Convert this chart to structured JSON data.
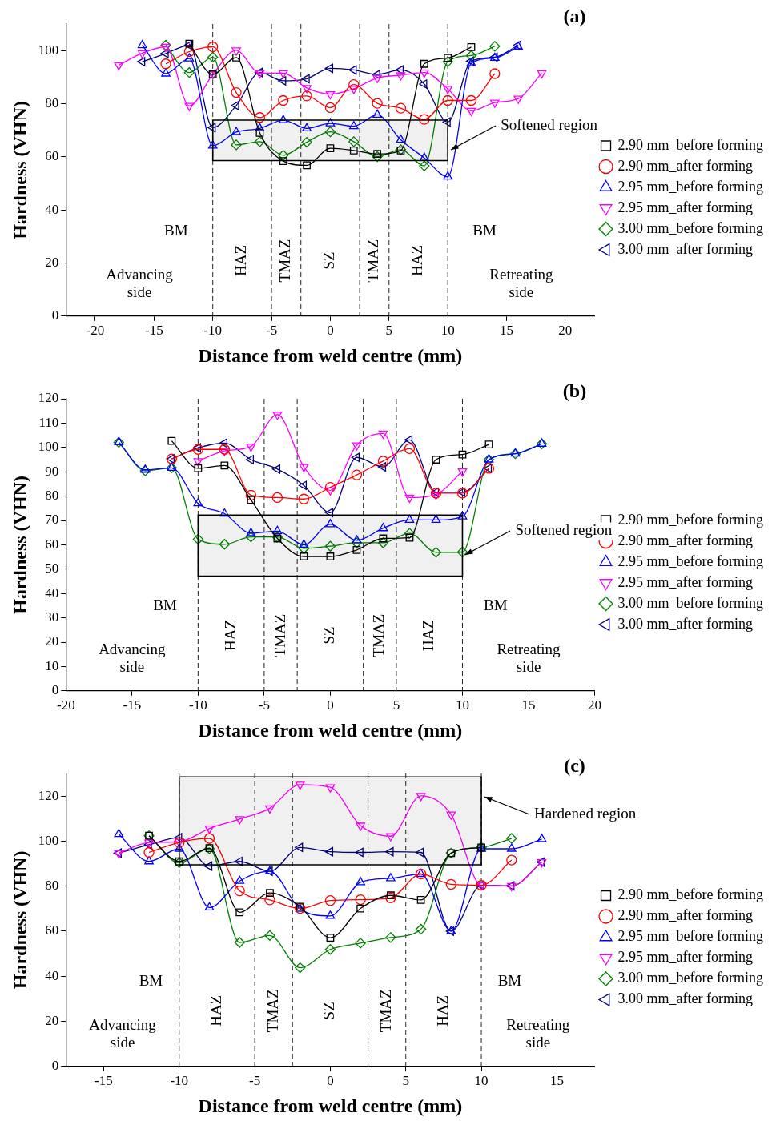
{
  "chart_data": [
    {
      "type": "line",
      "title": "(a)",
      "xlabel": "Distance from weld centre (mm)",
      "ylabel": "Hardness (VHN)",
      "xlim": [
        -22.5,
        22.5
      ],
      "xticks": [
        -20,
        -15,
        -10,
        -5,
        0,
        5,
        10,
        15,
        20
      ],
      "ylim": [
        0,
        110
      ],
      "yticks": [
        0,
        20,
        40,
        60,
        80,
        100
      ],
      "grid": false,
      "legend": "right",
      "series": [
        {
          "name": "2.90 mm_before forming",
          "color": "#000000",
          "marker": "square",
          "x": [
            -12,
            -10,
            -8,
            -6,
            -4,
            -2,
            0,
            2,
            4,
            6,
            8,
            10,
            12
          ],
          "values": [
            102.6,
            91,
            97.4,
            69,
            58.4,
            56.8,
            63.2,
            62.4,
            61.1,
            62.4,
            95,
            97.2,
            101.3
          ]
        },
        {
          "name": "2.90 mm_after forming",
          "color": "#ff0000",
          "marker": "circle",
          "x": [
            -14,
            -12,
            -10,
            -8,
            -6,
            -4,
            -2,
            0,
            2,
            4,
            6,
            8,
            10,
            12,
            14
          ],
          "values": [
            95,
            99.6,
            101.4,
            84.2,
            74.8,
            81.2,
            82.9,
            78.5,
            87.2,
            80.1,
            78.3,
            74.1,
            81.2,
            81.2,
            91.3
          ]
        },
        {
          "name": "2.95 mm_before forming",
          "color": "#0000ff",
          "marker": "triangle",
          "x": [
            -16,
            -14,
            -12,
            -10,
            -8,
            -6,
            -4,
            -2,
            0,
            2,
            4,
            6,
            8,
            10,
            12,
            14,
            16
          ],
          "values": [
            102,
            91.3,
            97,
            64.2,
            69.3,
            70.7,
            73.8,
            70.7,
            72.6,
            71.5,
            75.8,
            66.4,
            59.6,
            52.5,
            95.2,
            97.2,
            101.4
          ]
        },
        {
          "name": "2.95 mm_after forming",
          "color": "#ff00ff",
          "marker": "triangle-down",
          "x": [
            -18,
            -16,
            -14,
            -12,
            -10,
            -8,
            -6,
            -4,
            -2,
            0,
            2,
            4,
            6,
            8,
            10,
            12,
            14,
            16,
            18
          ],
          "values": [
            94.5,
            99,
            101.4,
            79.2,
            91,
            100.1,
            91.5,
            91.5,
            85.9,
            83.6,
            85.6,
            89.7,
            90.7,
            91.7,
            85.6,
            77.3,
            80.4,
            81.9,
            91.5
          ]
        },
        {
          "name": "3.00 mm_before forming",
          "color": "#008000",
          "marker": "diamond",
          "x": [
            -14,
            -12,
            -10,
            -8,
            -6,
            -4,
            -2,
            0,
            2,
            4,
            6,
            8,
            10,
            12,
            14
          ],
          "values": [
            102,
            91.7,
            97.5,
            64.5,
            65.7,
            60.6,
            65.5,
            69.4,
            65.7,
            60.1,
            62.7,
            56.6,
            95.8,
            98.1,
            101.6
          ]
        },
        {
          "name": "3.00 mm_after forming",
          "color": "#000080",
          "marker": "triangle-left",
          "x": [
            -16,
            -14,
            -12,
            -10,
            -8,
            -6,
            -4,
            -2,
            0,
            2,
            4,
            6,
            8,
            10,
            12,
            14,
            16
          ],
          "values": [
            95.8,
            98.9,
            102,
            71,
            79.3,
            91.7,
            88.6,
            89.4,
            93.3,
            92.7,
            91,
            92.7,
            87.4,
            73.1,
            96,
            97.5,
            102
          ]
        }
      ],
      "bands": [
        {
          "axis": "y",
          "from": 58.6,
          "to": 73.8,
          "label": "Softened region",
          "color": "#000000"
        }
      ],
      "ref_lines": [
        {
          "axis": "x",
          "value": -10,
          "line_style": "dashed"
        },
        {
          "axis": "x",
          "value": -5,
          "line_style": "dashed"
        },
        {
          "axis": "x",
          "value": -2.5,
          "line_style": "dashed"
        },
        {
          "axis": "x",
          "value": 2.5,
          "line_style": "dashed"
        },
        {
          "axis": "x",
          "value": 5,
          "line_style": "dashed"
        },
        {
          "axis": "x",
          "value": 10,
          "line_style": "dashed"
        }
      ],
      "annotations": [
        "BM",
        "HAZ",
        "TMAZ",
        "SZ",
        "TMAZ",
        "HAZ",
        "BM",
        "Advancing\nside",
        "Retreating\nside"
      ]
    },
    {
      "type": "line",
      "title": "(b)",
      "xlabel": "Distance from weld centre (mm)",
      "ylabel": "Hardness (VHN)",
      "xlim": [
        -20,
        20
      ],
      "xticks": [
        -20,
        -15,
        -10,
        -5,
        0,
        5,
        10,
        15,
        20
      ],
      "ylim": [
        0,
        120
      ],
      "yticks": [
        0,
        10,
        20,
        30,
        40,
        50,
        60,
        70,
        80,
        90,
        100,
        110,
        120
      ],
      "grid": false,
      "legend": "right",
      "series": [
        {
          "name": "2.90 mm_before forming",
          "color": "#000000",
          "marker": "square",
          "x": [
            -12,
            -10,
            -8,
            -6,
            -4,
            -2,
            0,
            2,
            4,
            6,
            8,
            10,
            12
          ],
          "values": [
            102.7,
            91.4,
            92.6,
            78.4,
            62.6,
            55.2,
            55.2,
            57.9,
            62.6,
            62.9,
            95,
            97.1,
            101.2
          ]
        },
        {
          "name": "2.90 mm_after forming",
          "color": "#ff0000",
          "marker": "circle",
          "x": [
            -12,
            -10,
            -8,
            -6,
            -4,
            -2,
            0,
            2,
            4,
            6,
            8,
            10,
            12
          ],
          "values": [
            95.3,
            99.2,
            99.2,
            80.4,
            79.4,
            78.8,
            83.6,
            88.7,
            94.4,
            99.5,
            81.2,
            81.2,
            91.4
          ]
        },
        {
          "name": "2.95 mm_before forming",
          "color": "#0000ff",
          "marker": "triangle",
          "x": [
            -16,
            -14,
            -12,
            -10,
            -8,
            -6,
            -4,
            -2,
            0,
            2,
            4,
            6,
            8,
            10,
            12,
            14,
            16
          ],
          "values": [
            102.1,
            90.8,
            91.6,
            77,
            72.8,
            64.8,
            65.6,
            60,
            68.4,
            61.8,
            66.8,
            70.2,
            70.2,
            71.6,
            95,
            97.4,
            101.5
          ]
        },
        {
          "name": "2.95 mm_after forming",
          "color": "#ff00ff",
          "marker": "triangle-down",
          "x": [
            -10,
            -8,
            -6,
            -4,
            -2,
            0,
            2,
            4,
            6,
            8,
            10
          ],
          "values": [
            94.4,
            98.6,
            100.4,
            113.5,
            92,
            82.4,
            100.9,
            105.7,
            79.4,
            80.6,
            90.2
          ]
        },
        {
          "name": "3.00 mm_before forming",
          "color": "#008000",
          "marker": "diamond",
          "x": [
            -16,
            -14,
            -12,
            -10,
            -8,
            -6,
            -4,
            -2,
            0,
            2,
            4,
            6,
            8,
            10,
            12,
            14,
            16
          ],
          "values": [
            102.1,
            90.4,
            91.6,
            62.3,
            60.2,
            63.2,
            63.2,
            58.5,
            59.4,
            60.8,
            60.8,
            64.7,
            56.9,
            57,
            95,
            97.4,
            101.5
          ]
        },
        {
          "name": "3.00 mm_after forming",
          "color": "#000080",
          "marker": "triangle-left",
          "x": [
            -12,
            -10,
            -8,
            -6,
            -4,
            -2,
            0,
            2,
            4,
            6,
            8,
            10,
            12
          ],
          "values": [
            95.3,
            99.8,
            101.8,
            95,
            91.1,
            84.4,
            73.2,
            95.9,
            92,
            103.1,
            81.6,
            81.6,
            91.4
          ]
        }
      ],
      "bands": [
        {
          "axis": "y",
          "from": 47.1,
          "to": 72.2,
          "label": "Softened region",
          "color": "#000000"
        }
      ],
      "ref_lines": [
        {
          "axis": "x",
          "value": -10,
          "line_style": "dashed"
        },
        {
          "axis": "x",
          "value": -5,
          "line_style": "dashed"
        },
        {
          "axis": "x",
          "value": -2.5,
          "line_style": "dashed"
        },
        {
          "axis": "x",
          "value": 2.5,
          "line_style": "dashed"
        },
        {
          "axis": "x",
          "value": 5,
          "line_style": "dashed"
        },
        {
          "axis": "x",
          "value": 10,
          "line_style": "dashed"
        }
      ],
      "annotations": [
        "BM",
        "HAZ",
        "TMAZ",
        "SZ",
        "TMAZ",
        "HAZ",
        "BM",
        "Advancing\nside",
        "Retreating\nside"
      ]
    },
    {
      "type": "line",
      "title": "(c)",
      "xlabel": "Distance from weld centre (mm)",
      "ylabel": "Hardness (VHN)",
      "xlim": [
        -17.5,
        17.5
      ],
      "xticks": [
        -15,
        -10,
        -5,
        0,
        5,
        10,
        15
      ],
      "ylim": [
        0,
        130
      ],
      "yticks": [
        0,
        20,
        40,
        60,
        80,
        100,
        120
      ],
      "grid": false,
      "legend": "right",
      "series": [
        {
          "name": "2.90 mm_before forming",
          "color": "#000000",
          "marker": "square",
          "x": [
            -12,
            -10,
            -8,
            -6,
            -4,
            -2,
            0,
            2,
            4,
            6,
            8,
            10
          ],
          "values": [
            102.4,
            91,
            96.9,
            68.4,
            77,
            70.9,
            57.1,
            70.1,
            75.9,
            73.9,
            94.7,
            97.2
          ]
        },
        {
          "name": "2.90 mm_after forming",
          "color": "#ff0000",
          "marker": "circle",
          "x": [
            -12,
            -10,
            -8,
            -6,
            -4,
            -2,
            0,
            2,
            4,
            6,
            8,
            10,
            12
          ],
          "values": [
            95,
            99.4,
            101.2,
            77.9,
            73.9,
            70.1,
            73.6,
            74,
            74.8,
            85.4,
            80.8,
            80.4,
            91.6
          ]
        },
        {
          "name": "2.95 mm_before forming",
          "color": "#0000ff",
          "marker": "triangle",
          "x": [
            -14,
            -12,
            -10,
            -8,
            -6,
            -4,
            -2,
            0,
            2,
            4,
            6,
            8,
            10,
            12,
            14
          ],
          "values": [
            103.1,
            91,
            96.6,
            70.5,
            82.3,
            86.6,
            69.9,
            66.8,
            81.7,
            83.5,
            85.4,
            60,
            96.6,
            96.6,
            100.9
          ]
        },
        {
          "name": "2.95 mm_after forming",
          "color": "#ff00ff",
          "marker": "triangle-down",
          "x": [
            -14,
            -12,
            -10,
            -8,
            -6,
            -4,
            -2,
            0,
            2,
            4,
            6,
            8,
            10,
            12,
            14
          ],
          "values": [
            94.7,
            99.4,
            99.7,
            105.6,
            109.8,
            114.6,
            125.1,
            123.9,
            106.9,
            102.2,
            120.1,
            111.8,
            80.4,
            80.1,
            90.7
          ]
        },
        {
          "name": "3.00 mm_before forming",
          "color": "#008000",
          "marker": "diamond",
          "x": [
            -12,
            -10,
            -8,
            -6,
            -4,
            -2,
            0,
            2,
            4,
            6,
            8,
            10,
            12
          ],
          "values": [
            102.4,
            90.4,
            96.6,
            55,
            58.1,
            43.8,
            51.9,
            54.7,
            57.2,
            60.9,
            94.7,
            97.2,
            101.2
          ]
        },
        {
          "name": "3.00 mm_after forming",
          "color": "#000080",
          "marker": "triangle-left",
          "x": [
            -14,
            -12,
            -10,
            -8,
            -6,
            -4,
            -2,
            0,
            2,
            4,
            6,
            8,
            10,
            12,
            14
          ],
          "values": [
            94.7,
            98.4,
            101.5,
            88.9,
            91,
            86.6,
            97.2,
            95.3,
            95,
            95.3,
            95,
            60,
            80.4,
            80.1,
            90.7
          ]
        }
      ],
      "bands": [
        {
          "axis": "y",
          "from": 89.5,
          "to": 128.5,
          "label": "Hardened region",
          "color": "#000000"
        }
      ],
      "ref_lines": [
        {
          "axis": "x",
          "value": -10,
          "line_style": "dashed"
        },
        {
          "axis": "x",
          "value": -5,
          "line_style": "dashed"
        },
        {
          "axis": "x",
          "value": -2.5,
          "line_style": "dashed"
        },
        {
          "axis": "x",
          "value": 2.5,
          "line_style": "dashed"
        },
        {
          "axis": "x",
          "value": 5,
          "line_style": "dashed"
        },
        {
          "axis": "x",
          "value": 10,
          "line_style": "dashed"
        }
      ],
      "annotations": [
        "BM",
        "HAZ",
        "TMAZ",
        "SZ",
        "TMAZ",
        "HAZ",
        "BM",
        "Advancing\nside",
        "Retreating\nside"
      ]
    }
  ]
}
